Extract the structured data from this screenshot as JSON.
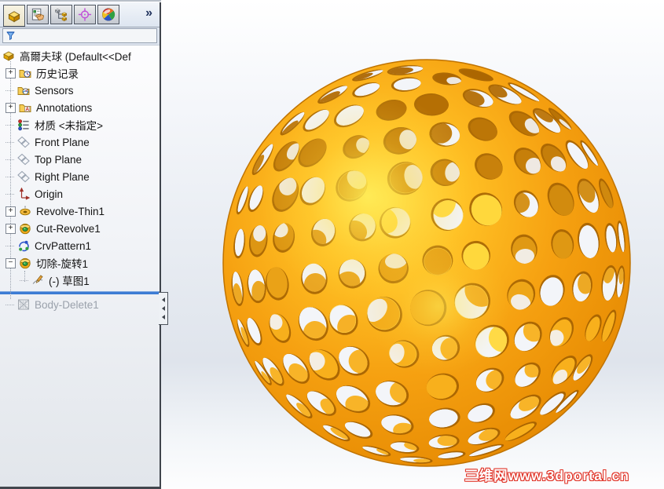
{
  "panel": {
    "tabs": [
      {
        "name": "featuremanager",
        "icon": "featuremanager-tab-icon",
        "active": true
      },
      {
        "name": "propertymanager",
        "icon": "propertymanager-tab-icon",
        "active": false
      },
      {
        "name": "configurationmanager",
        "icon": "configurationmanager-tab-icon",
        "active": false
      },
      {
        "name": "dimxpertmanager",
        "icon": "dimxpertmanager-tab-icon",
        "active": false
      },
      {
        "name": "displaymanager",
        "icon": "displaymanager-tab-icon",
        "active": false
      }
    ],
    "overflow_chevron": "»",
    "filter": {
      "value": "",
      "placeholder": ""
    },
    "tree": [
      {
        "label": "高爾夫球 (Default<<Def",
        "icon": "part-icon",
        "level": 0
      },
      {
        "label": "历史记录",
        "icon": "history-folder-icon",
        "level": 1,
        "expand": "+"
      },
      {
        "label": "Sensors",
        "icon": "sensors-folder-icon",
        "level": 1
      },
      {
        "label": "Annotations",
        "icon": "annotations-folder-icon",
        "level": 1,
        "expand": "+"
      },
      {
        "label": "材质 <未指定>",
        "icon": "material-icon",
        "level": 1
      },
      {
        "label": "Front Plane",
        "icon": "plane-icon",
        "level": 1
      },
      {
        "label": "Top Plane",
        "icon": "plane-icon",
        "level": 1
      },
      {
        "label": "Right Plane",
        "icon": "plane-icon",
        "level": 1
      },
      {
        "label": "Origin",
        "icon": "origin-icon",
        "level": 1
      },
      {
        "label": "Revolve-Thin1",
        "icon": "revolve-icon",
        "level": 1,
        "expand": "+"
      },
      {
        "label": "Cut-Revolve1",
        "icon": "cut-revolve-icon",
        "level": 1,
        "expand": "+"
      },
      {
        "label": "CrvPattern1",
        "icon": "crvpattern-icon",
        "level": 1
      },
      {
        "label": "切除-旋转1",
        "icon": "cut-revolve-icon",
        "level": 1,
        "expand": "-"
      },
      {
        "label": "(-) 草图1",
        "icon": "sketch-icon",
        "level": 2
      },
      {
        "type": "rollback"
      },
      {
        "label": "Body-Delete1",
        "icon": "body-delete-icon",
        "level": 1,
        "grayed": true
      }
    ]
  },
  "viewport": {
    "watermark": "三维网www.3dportal.cn",
    "model": "perforated-golf-ball",
    "colors": {
      "shell": "#f6a111",
      "shell_dark": "#cd7800",
      "shell_mid": "#ffc125",
      "highlight": "#ffe04a",
      "outline": "#c07300",
      "rim_dark": "#9a5a00",
      "inner_dark": "#a96300",
      "inner_light": "#f8b01c",
      "inner_glow": "#ffd83c",
      "ring_glow": "#ffd84a",
      "hole_bg": "#f3f5f9",
      "watermark_red": "#e03226",
      "rollback_blue": "#3d7cd4"
    }
  }
}
